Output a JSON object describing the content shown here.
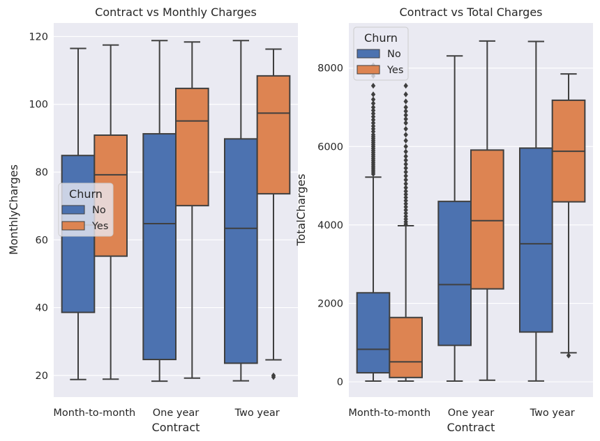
{
  "chart_data": [
    {
      "type": "box",
      "title": "Contract vs Monthly Charges",
      "xlabel": "Contract",
      "ylabel": "MonthlyCharges",
      "categories": [
        "Month-to-month",
        "One year",
        "Two year"
      ],
      "ylim": [
        13.6,
        124.0
      ],
      "yticks": [
        20,
        40,
        60,
        80,
        100,
        120
      ],
      "grid": true,
      "legend": {
        "title": "Churn",
        "placement": "center-left",
        "entries": [
          "No",
          "Yes"
        ]
      },
      "series": [
        {
          "name": "No",
          "color": "#4c72b0",
          "boxes": [
            {
              "whisker_low": 18.8,
              "q1": 38.6,
              "median": 64.4,
              "q3": 84.9,
              "whisker_high": 116.5,
              "outliers": []
            },
            {
              "whisker_low": 18.3,
              "q1": 24.7,
              "median": 64.8,
              "q3": 91.3,
              "whisker_high": 118.8,
              "outliers": []
            },
            {
              "whisker_low": 18.4,
              "q1": 23.6,
              "median": 63.4,
              "q3": 89.8,
              "whisker_high": 118.8,
              "outliers": []
            }
          ]
        },
        {
          "name": "Yes",
          "color": "#dd8452",
          "boxes": [
            {
              "whisker_low": 18.9,
              "q1": 55.2,
              "median": 79.2,
              "q3": 90.9,
              "whisker_high": 117.5,
              "outliers": []
            },
            {
              "whisker_low": 19.2,
              "q1": 70.1,
              "median": 95.1,
              "q3": 104.7,
              "whisker_high": 118.4,
              "outliers": []
            },
            {
              "whisker_low": 24.6,
              "q1": 73.6,
              "median": 97.4,
              "q3": 108.4,
              "whisker_high": 116.3,
              "outliers": [
                19.5,
                20.0
              ]
            }
          ]
        }
      ]
    },
    {
      "type": "box",
      "title": "Contract vs Total Charges",
      "xlabel": "Contract",
      "ylabel": "TotalCharges",
      "categories": [
        "Month-to-month",
        "One year",
        "Two year"
      ],
      "ylim": [
        -390,
        9150
      ],
      "yticks": [
        0,
        2000,
        4000,
        6000,
        8000
      ],
      "grid": true,
      "legend": {
        "title": "Churn",
        "placement": "top-left",
        "entries": [
          "No",
          "Yes"
        ]
      },
      "series": [
        {
          "name": "No",
          "color": "#4c72b0",
          "boxes": [
            {
              "whisker_low": 19,
              "q1": 230,
              "median": 830,
              "q3": 2270,
              "whisker_high": 5220,
              "outliers": [
                5300,
                5350,
                5400,
                5450,
                5500,
                5550,
                5600,
                5650,
                5700,
                5750,
                5800,
                5850,
                5900,
                5950,
                6000,
                6050,
                6100,
                6150,
                6200,
                6250,
                6300,
                6380,
                6450,
                6520,
                6600,
                6680,
                6760,
                6840,
                6920,
                7000,
                7100,
                7200,
                7330,
                7550,
                7800,
                8070
              ]
            },
            {
              "whisker_low": 19,
              "q1": 930,
              "median": 2480,
              "q3": 4600,
              "whisker_high": 8310,
              "outliers": []
            },
            {
              "whisker_low": 20,
              "q1": 1270,
              "median": 3520,
              "q3": 5960,
              "whisker_high": 8680,
              "outliers": []
            }
          ]
        },
        {
          "name": "Yes",
          "color": "#dd8452",
          "boxes": [
            {
              "whisker_low": 19,
              "q1": 110,
              "median": 510,
              "q3": 1640,
              "whisker_high": 3980,
              "outliers": [
                4020,
                4080,
                4150,
                4220,
                4300,
                4380,
                4460,
                4540,
                4620,
                4700,
                4780,
                4860,
                4950,
                5050,
                5150,
                5250,
                5350,
                5450,
                5550,
                5650,
                5750,
                5870,
                6000,
                6150,
                6300,
                6450,
                6600,
                6700,
                6800,
                6900,
                7000,
                7150,
                7330,
                7550
              ]
            },
            {
              "whisker_low": 40,
              "q1": 2370,
              "median": 4110,
              "q3": 5910,
              "whisker_high": 8690,
              "outliers": []
            },
            {
              "whisker_low": 740,
              "q1": 4590,
              "median": 5880,
              "q3": 7180,
              "whisker_high": 7850,
              "outliers": [
                670
              ]
            }
          ]
        }
      ]
    }
  ]
}
